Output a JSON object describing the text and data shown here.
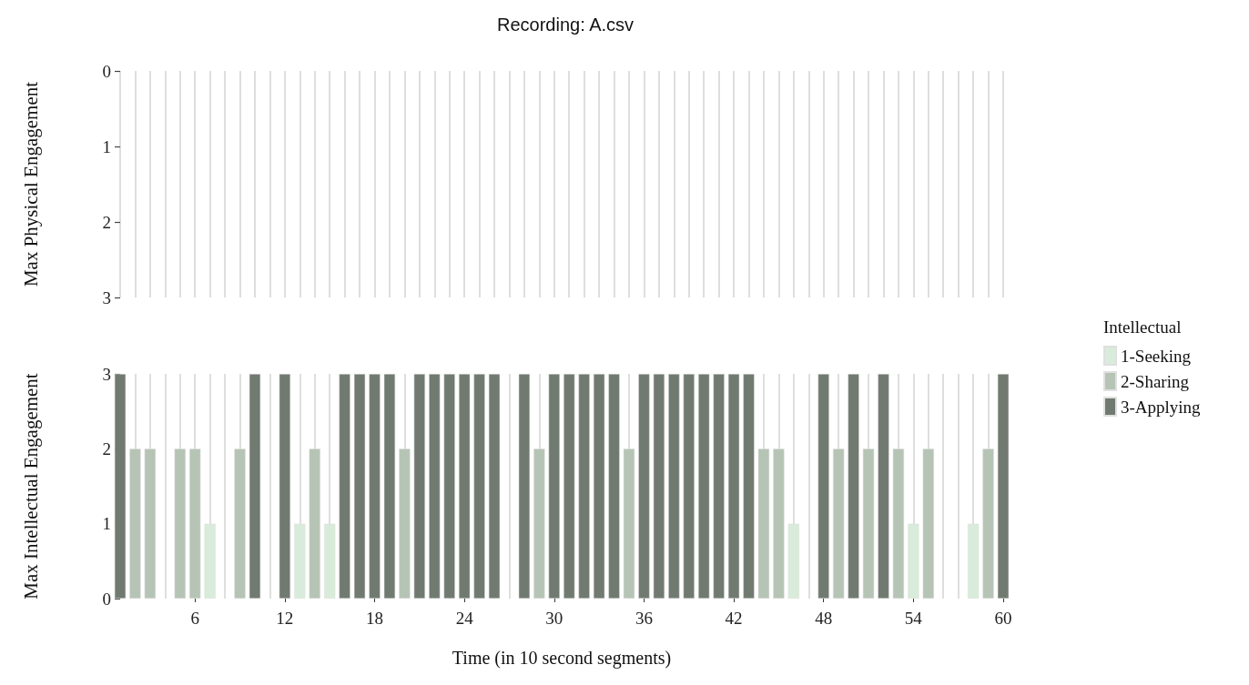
{
  "chart_data": [
    {
      "type": "bar",
      "title": "Recording: A.csv",
      "ylabel": "Max Physical Engagement",
      "categories": [
        null,
        null,
        null,
        null,
        null,
        "6",
        null,
        null,
        null,
        null,
        null,
        "12",
        null,
        null,
        null,
        null,
        null,
        "18",
        null,
        null,
        null,
        null,
        null,
        "24",
        null,
        null,
        null,
        null,
        null,
        "30",
        null,
        null,
        null,
        null,
        null,
        "36",
        null,
        null,
        null,
        null,
        null,
        "42",
        null,
        null,
        null,
        null,
        null,
        "48",
        null,
        null,
        null,
        null,
        null,
        "54",
        null,
        null,
        null,
        null,
        null,
        "60"
      ],
      "values": [
        0,
        0,
        0,
        0,
        0,
        0,
        0,
        0,
        0,
        0,
        0,
        0,
        0,
        0,
        0,
        0,
        0,
        0,
        0,
        0,
        0,
        0,
        0,
        0,
        0,
        0,
        0,
        0,
        0,
        0,
        0,
        0,
        0,
        0,
        0,
        0,
        0,
        0,
        0,
        0,
        0,
        0,
        0,
        0,
        0,
        0,
        0,
        0,
        0,
        0,
        0,
        0,
        0,
        0,
        0,
        0,
        0,
        0,
        0,
        0
      ],
      "ylim": [
        3,
        0
      ],
      "yticks": [
        0,
        1,
        2,
        3
      ],
      "grid": "x",
      "tick_labels": "y"
    },
    {
      "type": "bar",
      "xlabel": "Time (in 10 second segments)",
      "ylabel": "Max Intellectual Engagement",
      "legend_title": "Intellectual",
      "categories": [
        null,
        null,
        null,
        null,
        null,
        "6",
        null,
        null,
        null,
        null,
        null,
        "12",
        null,
        null,
        null,
        null,
        null,
        "18",
        null,
        null,
        null,
        null,
        null,
        "24",
        null,
        null,
        null,
        null,
        null,
        "30",
        null,
        null,
        null,
        null,
        null,
        "36",
        null,
        null,
        null,
        null,
        null,
        "42",
        null,
        null,
        null,
        null,
        null,
        "48",
        null,
        null,
        null,
        null,
        null,
        "54",
        null,
        null,
        null,
        null,
        null,
        "60"
      ],
      "stacked": true,
      "series": [
        {
          "name": "1-Seeking",
          "color": "#d9ebda",
          "values": [
            null,
            null,
            null,
            null,
            null,
            null,
            1,
            null,
            null,
            null,
            null,
            null,
            1,
            null,
            1,
            null,
            null,
            null,
            null,
            null,
            null,
            null,
            null,
            null,
            null,
            null,
            null,
            null,
            null,
            null,
            null,
            null,
            null,
            null,
            null,
            null,
            null,
            null,
            null,
            null,
            null,
            null,
            null,
            null,
            null,
            1,
            null,
            null,
            null,
            null,
            null,
            null,
            null,
            1,
            null,
            null,
            null,
            1,
            null,
            null
          ]
        },
        {
          "name": "2-Sharing",
          "color": "#b6c4b6",
          "values": [
            null,
            2,
            2,
            null,
            2,
            2,
            null,
            null,
            2,
            null,
            null,
            null,
            null,
            2,
            null,
            null,
            null,
            null,
            null,
            2,
            null,
            null,
            null,
            null,
            null,
            null,
            null,
            null,
            2,
            null,
            null,
            null,
            null,
            null,
            2,
            null,
            null,
            null,
            null,
            null,
            null,
            null,
            null,
            2,
            2,
            null,
            null,
            null,
            2,
            null,
            2,
            null,
            2,
            null,
            2,
            null,
            null,
            null,
            2,
            null
          ]
        },
        {
          "name": "3-Applying",
          "color": "#717a70",
          "values": [
            3,
            null,
            null,
            null,
            null,
            null,
            null,
            null,
            null,
            3,
            null,
            3,
            null,
            null,
            null,
            3,
            3,
            3,
            3,
            null,
            3,
            3,
            3,
            3,
            3,
            3,
            null,
            3,
            null,
            3,
            3,
            3,
            3,
            3,
            null,
            3,
            3,
            3,
            3,
            3,
            3,
            3,
            3,
            null,
            null,
            null,
            null,
            3,
            null,
            3,
            null,
            3,
            null,
            null,
            null,
            null,
            null,
            null,
            null,
            3
          ]
        }
      ],
      "ylim": [
        0,
        3
      ],
      "yticks": [
        0,
        1,
        2,
        3
      ],
      "grid": "x",
      "legend": "right"
    }
  ]
}
